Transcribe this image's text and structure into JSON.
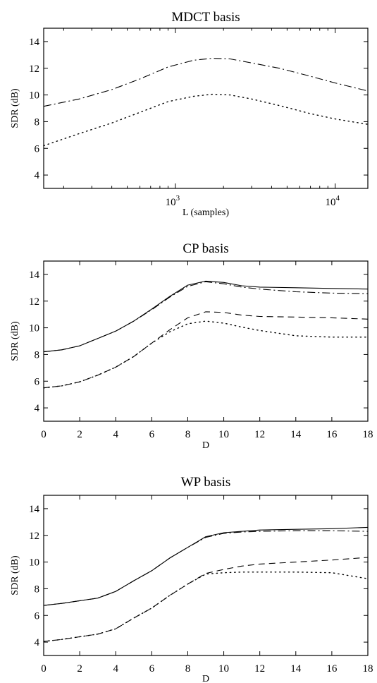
{
  "chart_data": [
    {
      "type": "line",
      "title": "MDCT basis",
      "xlabel": "L (samples)",
      "ylabel": "SDR (dB)",
      "xscale": "log",
      "xlim": [
        150,
        16000
      ],
      "ylim": [
        3,
        15
      ],
      "xticks": [
        1000,
        10000
      ],
      "xtick_labels": [
        {
          "base": "10",
          "exp": "3"
        },
        {
          "base": "10",
          "exp": "4"
        }
      ],
      "yticks": [
        4,
        6,
        8,
        10,
        12,
        14
      ],
      "ytick_labels": [
        "4",
        "6",
        "8",
        "10",
        "12",
        "14"
      ],
      "series": [
        {
          "style": "dashdot",
          "x": [
            150,
            250,
            400,
            600,
            900,
            1300,
            1700,
            2200,
            3000,
            4500,
            7000,
            10000,
            16000
          ],
          "y": [
            9.15,
            9.7,
            10.4,
            11.2,
            12.1,
            12.6,
            12.75,
            12.7,
            12.4,
            12.0,
            11.4,
            10.9,
            10.3
          ]
        },
        {
          "style": "dotted",
          "x": [
            150,
            250,
            400,
            600,
            900,
            1300,
            1700,
            2200,
            3000,
            4500,
            7000,
            10000,
            16000
          ],
          "y": [
            6.2,
            7.1,
            7.9,
            8.7,
            9.5,
            9.9,
            10.05,
            10.0,
            9.7,
            9.2,
            8.6,
            8.2,
            7.8
          ]
        }
      ]
    },
    {
      "type": "line",
      "title": "CP basis",
      "xlabel": "D",
      "ylabel": "SDR (dB)",
      "xlim": [
        0,
        18
      ],
      "ylim": [
        3,
        15
      ],
      "xticks": [
        0,
        2,
        4,
        6,
        8,
        10,
        12,
        14,
        16,
        18
      ],
      "xtick_labels": [
        "0",
        "2",
        "4",
        "6",
        "8",
        "10",
        "12",
        "14",
        "16",
        "18"
      ],
      "yticks": [
        4,
        6,
        8,
        10,
        12,
        14
      ],
      "ytick_labels": [
        "4",
        "6",
        "8",
        "10",
        "12",
        "14"
      ],
      "series": [
        {
          "style": "solid",
          "x": [
            0,
            1,
            2,
            3,
            4,
            5,
            6,
            7,
            8,
            9,
            10,
            11,
            12,
            14,
            16,
            18
          ],
          "y": [
            8.2,
            8.35,
            8.65,
            9.2,
            9.75,
            10.5,
            11.4,
            12.35,
            13.2,
            13.5,
            13.4,
            13.15,
            13.05,
            13.0,
            12.95,
            12.9
          ]
        },
        {
          "style": "dashdot",
          "x": [
            0,
            1,
            2,
            3,
            4,
            5,
            6,
            7,
            8,
            9,
            10,
            11,
            12,
            14,
            16,
            18
          ],
          "y": [
            8.2,
            8.35,
            8.65,
            9.2,
            9.75,
            10.5,
            11.35,
            12.3,
            13.1,
            13.45,
            13.3,
            13.05,
            12.9,
            12.7,
            12.6,
            12.55
          ]
        },
        {
          "style": "dashed",
          "x": [
            0,
            1,
            2,
            3,
            4,
            5,
            6,
            7,
            8,
            9,
            10,
            11,
            12,
            14,
            16,
            18
          ],
          "y": [
            5.5,
            5.65,
            5.95,
            6.45,
            7.05,
            7.85,
            8.85,
            9.85,
            10.75,
            11.2,
            11.15,
            10.95,
            10.85,
            10.8,
            10.75,
            10.65
          ]
        },
        {
          "style": "dotted",
          "x": [
            0,
            1,
            2,
            3,
            4,
            5,
            6,
            7,
            8,
            9,
            10,
            11,
            12,
            14,
            16,
            18
          ],
          "y": [
            5.5,
            5.65,
            5.95,
            6.45,
            7.05,
            7.85,
            8.85,
            9.7,
            10.3,
            10.5,
            10.35,
            10.05,
            9.8,
            9.4,
            9.3,
            9.3
          ]
        }
      ]
    },
    {
      "type": "line",
      "title": "WP basis",
      "xlabel": "D",
      "ylabel": "SDR (dB)",
      "xlim": [
        0,
        18
      ],
      "ylim": [
        3,
        15
      ],
      "xticks": [
        0,
        2,
        4,
        6,
        8,
        10,
        12,
        14,
        16,
        18
      ],
      "xtick_labels": [
        "0",
        "2",
        "4",
        "6",
        "8",
        "10",
        "12",
        "14",
        "16",
        "18"
      ],
      "yticks": [
        4,
        6,
        8,
        10,
        12,
        14
      ],
      "ytick_labels": [
        "4",
        "6",
        "8",
        "10",
        "12",
        "14"
      ],
      "series": [
        {
          "style": "solid",
          "x": [
            0,
            1,
            2,
            3,
            4,
            5,
            6,
            7,
            8,
            9,
            10,
            11,
            12,
            14,
            16,
            18
          ],
          "y": [
            6.75,
            6.9,
            7.1,
            7.3,
            7.8,
            8.6,
            9.35,
            10.3,
            11.1,
            11.9,
            12.2,
            12.3,
            12.4,
            12.45,
            12.5,
            12.6
          ]
        },
        {
          "style": "dashdot",
          "x": [
            0,
            1,
            2,
            3,
            4,
            5,
            6,
            7,
            8,
            9,
            10,
            11,
            12,
            14,
            16,
            18
          ],
          "y": [
            6.75,
            6.9,
            7.1,
            7.3,
            7.8,
            8.6,
            9.35,
            10.3,
            11.1,
            11.85,
            12.15,
            12.25,
            12.3,
            12.35,
            12.35,
            12.3
          ]
        },
        {
          "style": "dashed",
          "x": [
            0,
            1,
            2,
            3,
            4,
            5,
            6,
            7,
            8,
            9,
            10,
            11,
            12,
            14,
            16,
            18
          ],
          "y": [
            4.05,
            4.2,
            4.4,
            4.6,
            5.0,
            5.8,
            6.55,
            7.5,
            8.35,
            9.15,
            9.45,
            9.7,
            9.85,
            10.0,
            10.15,
            10.35
          ]
        },
        {
          "style": "dotted",
          "x": [
            0,
            1,
            2,
            3,
            4,
            5,
            6,
            7,
            8,
            9,
            10,
            11,
            12,
            14,
            16,
            18
          ],
          "y": [
            4.05,
            4.2,
            4.4,
            4.6,
            5.0,
            5.8,
            6.55,
            7.5,
            8.35,
            9.1,
            9.2,
            9.25,
            9.25,
            9.25,
            9.2,
            8.75
          ]
        }
      ]
    }
  ]
}
